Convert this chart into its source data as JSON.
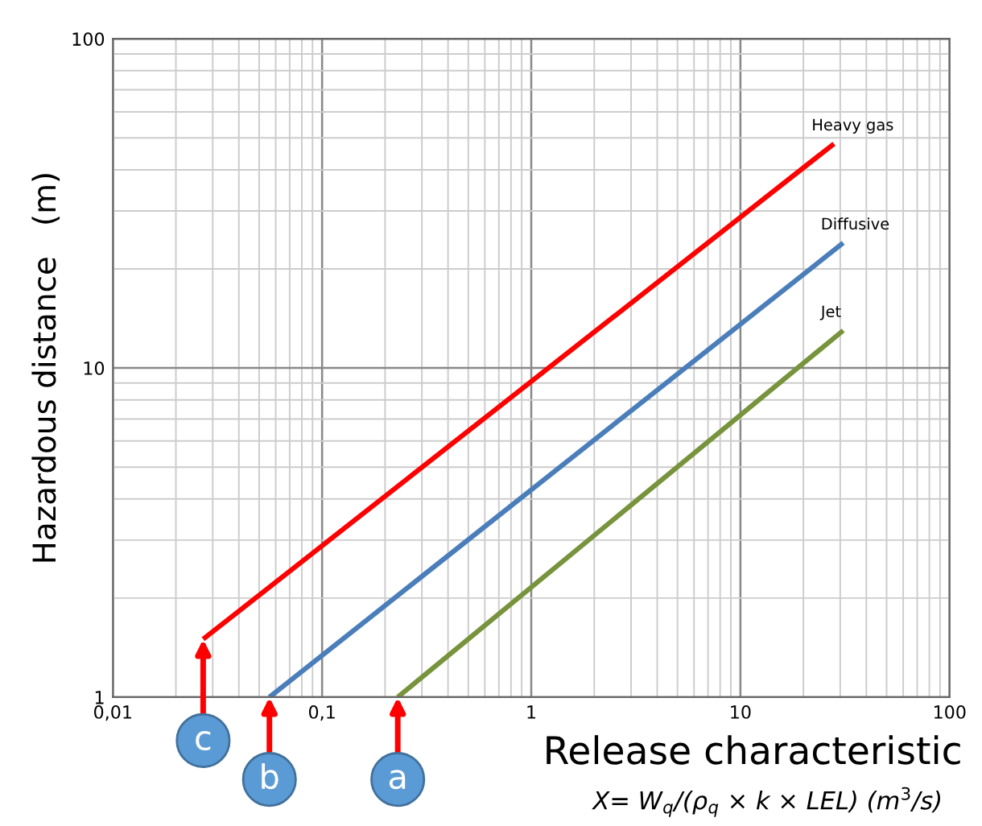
{
  "chart_data": {
    "type": "line",
    "xlabel": "Release characteristic",
    "ylabel": "Hazardous distance   (m)",
    "log": "xy",
    "grid": true,
    "marker": "none",
    "line_style": "solid",
    "legend": false,
    "xlim": [
      0.01,
      100
    ],
    "ylim": [
      1,
      100
    ],
    "xticks": [
      {
        "value": 0.01,
        "label": "0,01"
      },
      {
        "value": 0.1,
        "label": "0,1"
      },
      1,
      10,
      100
    ],
    "yticks": [
      1,
      10,
      100
    ],
    "series": [
      {
        "name": "Heavy gas",
        "color": "#ff0000",
        "x": [
          0.027,
          28
        ],
        "values": [
          1.5,
          48
        ]
      },
      {
        "name": "Diffusive",
        "color": "#4a7ebb",
        "x": [
          0.056,
          31
        ],
        "values": [
          1,
          24
        ]
      },
      {
        "name": "Jet",
        "color": "#77933c",
        "x": [
          0.23,
          31
        ],
        "values": [
          1,
          13
        ]
      }
    ],
    "annotations": [
      {
        "text": "c",
        "x": 0.027,
        "y": 1.5
      },
      {
        "text": "b",
        "x": 0.056,
        "y": 1
      },
      {
        "text": "a",
        "x": 0.23,
        "y": 1
      },
      "X= W$_{q}$/(ρ$_{q}$ × k × LEL) (m$^{3}$/s)"
    ]
  }
}
